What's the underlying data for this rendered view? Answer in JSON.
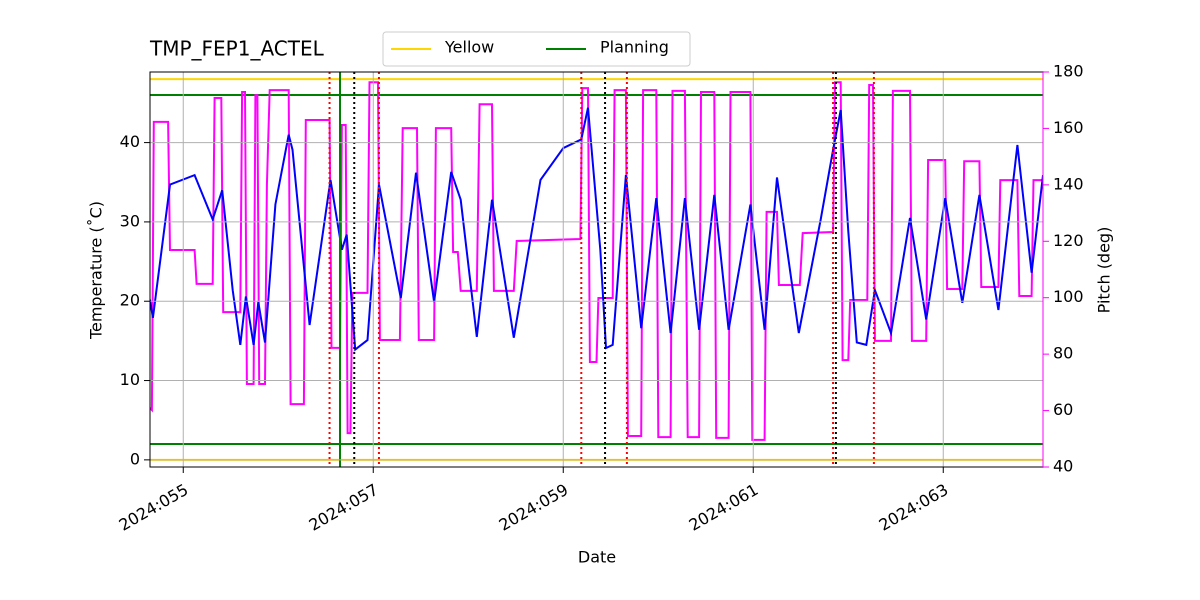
{
  "chart_data": {
    "type": "line",
    "title": "TMP_FEP1_ACTEL",
    "xlabel": "Date",
    "ylabel": "Temperature (˚C)",
    "y2label": "Pitch (deg)",
    "y2color": "magenta",
    "xlim": [
      54.65,
      64.05
    ],
    "ylim": [
      -0.9,
      48.9
    ],
    "y2lim": [
      40,
      180
    ],
    "xticks": [
      {
        "value": 55,
        "label": "2024:055"
      },
      {
        "value": 57,
        "label": "2024:057"
      },
      {
        "value": 59,
        "label": "2024:059"
      },
      {
        "value": 61,
        "label": "2024:061"
      },
      {
        "value": 63,
        "label": "2024:063"
      }
    ],
    "yticks": [
      0,
      10,
      20,
      30,
      40
    ],
    "y2ticks": [
      40,
      60,
      80,
      100,
      120,
      140,
      160,
      180
    ],
    "grid": true,
    "legend": "upper center",
    "limit_lines": [
      {
        "name": "Yellow",
        "color": "gold",
        "values": [
          0,
          48
        ]
      },
      {
        "name": "Planning",
        "color": "green",
        "values": [
          2,
          46
        ]
      }
    ],
    "vlines": [
      {
        "color": "green",
        "style": "solid",
        "x": [
          56.65
        ]
      },
      {
        "color": "red",
        "style": "dotted",
        "x": [
          56.54,
          57.06,
          59.19,
          59.67,
          61.84,
          62.27
        ]
      },
      {
        "color": "black",
        "style": "dotted",
        "x": [
          56.8,
          59.44,
          61.87
        ]
      }
    ],
    "series": [
      {
        "color": "magenta",
        "axis": "y2",
        "x": [
          54.65,
          54.67,
          54.69,
          54.84,
          54.86,
          55.12,
          55.14,
          55.31,
          55.33,
          55.4,
          55.42,
          55.6,
          55.62,
          55.65,
          55.67,
          55.74,
          55.76,
          55.78,
          55.8,
          55.86,
          55.88,
          55.91,
          56.11,
          56.13,
          56.27,
          56.29,
          56.54,
          56.56,
          56.65,
          56.67,
          56.71,
          56.73,
          56.76,
          56.78,
          56.94,
          56.96,
          57.05,
          57.07,
          57.28,
          57.31,
          57.46,
          57.48,
          57.64,
          57.66,
          57.82,
          57.84,
          57.89,
          57.92,
          58.09,
          58.12,
          58.25,
          58.27,
          58.48,
          58.51,
          59.18,
          59.2,
          59.26,
          59.28,
          59.35,
          59.37,
          59.52,
          59.54,
          59.66,
          59.68,
          59.82,
          59.84,
          59.98,
          60.0,
          60.13,
          60.15,
          60.28,
          60.31,
          60.43,
          60.45,
          60.59,
          60.61,
          60.74,
          60.76,
          60.97,
          60.99,
          61.12,
          61.14,
          61.25,
          61.27,
          61.49,
          61.52,
          61.84,
          61.86,
          61.92,
          61.94,
          62.0,
          62.02,
          62.2,
          62.22,
          62.26,
          62.28,
          62.45,
          62.47,
          62.65,
          62.67,
          62.82,
          62.84,
          63.02,
          63.04,
          63.2,
          63.22,
          63.38,
          63.4,
          63.58,
          63.6,
          63.78,
          63.8,
          63.93,
          63.95,
          64.05
        ],
        "values": [
          60.9,
          60.2,
          162.3,
          162.3,
          116.9,
          116.9,
          104.9,
          104.9,
          170.8,
          170.8,
          94.9,
          94.9,
          172.9,
          172.9,
          69.4,
          69.4,
          171.8,
          171.8,
          69.4,
          69.4,
          139.9,
          173.6,
          173.6,
          62.3,
          62.3,
          163,
          163,
          82.2,
          82.2,
          161.2,
          161.2,
          52,
          52,
          101.7,
          101.7,
          176.4,
          176.4,
          85,
          85,
          160.1,
          160.1,
          85,
          85,
          160.1,
          160.1,
          116.2,
          116.2,
          102.4,
          102.4,
          168.6,
          168.6,
          102.4,
          102.4,
          120.1,
          120.8,
          174.3,
          174.3,
          77.2,
          77.2,
          99.9,
          99.9,
          173.6,
          173.6,
          51,
          51,
          173.6,
          173.6,
          50.6,
          50.6,
          173.3,
          173.3,
          50.6,
          50.6,
          172.9,
          172.9,
          50.3,
          50.3,
          172.9,
          172.9,
          49.6,
          49.6,
          130.4,
          130.4,
          104.5,
          104.5,
          122.9,
          123.3,
          176.4,
          176.4,
          77.9,
          77.9,
          99.2,
          99.2,
          175.4,
          175.4,
          84.7,
          84.7,
          173.3,
          173.3,
          84.7,
          84.7,
          148.8,
          148.8,
          103.1,
          103.1,
          148.4,
          148.4,
          103.8,
          103.8,
          141.7,
          141.7,
          100.6,
          100.6,
          141.7,
          141.7
        ]
      },
      {
        "color": "blue",
        "x": [
          54.65,
          54.68,
          54.86,
          55.12,
          55.31,
          55.41,
          55.52,
          55.6,
          55.66,
          55.74,
          55.79,
          55.86,
          55.97,
          56.11,
          56.15,
          56.33,
          56.55,
          56.67,
          56.72,
          56.81,
          56.94,
          57.06,
          57.29,
          57.45,
          57.64,
          57.82,
          57.92,
          58.09,
          58.25,
          58.48,
          58.76,
          59.0,
          59.19,
          59.26,
          59.39,
          59.45,
          59.52,
          59.66,
          59.82,
          59.98,
          60.13,
          60.28,
          60.43,
          60.59,
          60.74,
          60.97,
          61.12,
          61.25,
          61.48,
          61.71,
          61.84,
          61.92,
          62.0,
          62.09,
          62.19,
          62.28,
          62.34,
          62.45,
          62.65,
          62.82,
          63.02,
          63.2,
          63.38,
          63.58,
          63.78,
          63.93,
          64.05
        ],
        "values": [
          20.2,
          17.9,
          34.7,
          35.9,
          30.3,
          34,
          21.4,
          14.5,
          20.6,
          14.5,
          19.9,
          14.8,
          32.2,
          41,
          39.1,
          17,
          35.3,
          26.5,
          28.4,
          13.9,
          15.1,
          34.7,
          20.4,
          36.2,
          19.9,
          36.3,
          32.8,
          15.5,
          32.8,
          15.4,
          35.3,
          39.3,
          40.4,
          44.4,
          26.5,
          14.1,
          14.5,
          35.9,
          16.6,
          33,
          16,
          33,
          16.4,
          33.4,
          16.4,
          32.2,
          16.4,
          35.6,
          16,
          30.3,
          39.1,
          44.1,
          28.8,
          14.8,
          14.5,
          21.4,
          19.5,
          16,
          30.5,
          17.7,
          33,
          19.8,
          33.4,
          18.9,
          39.7,
          23.6,
          35.9
        ]
      }
    ]
  }
}
